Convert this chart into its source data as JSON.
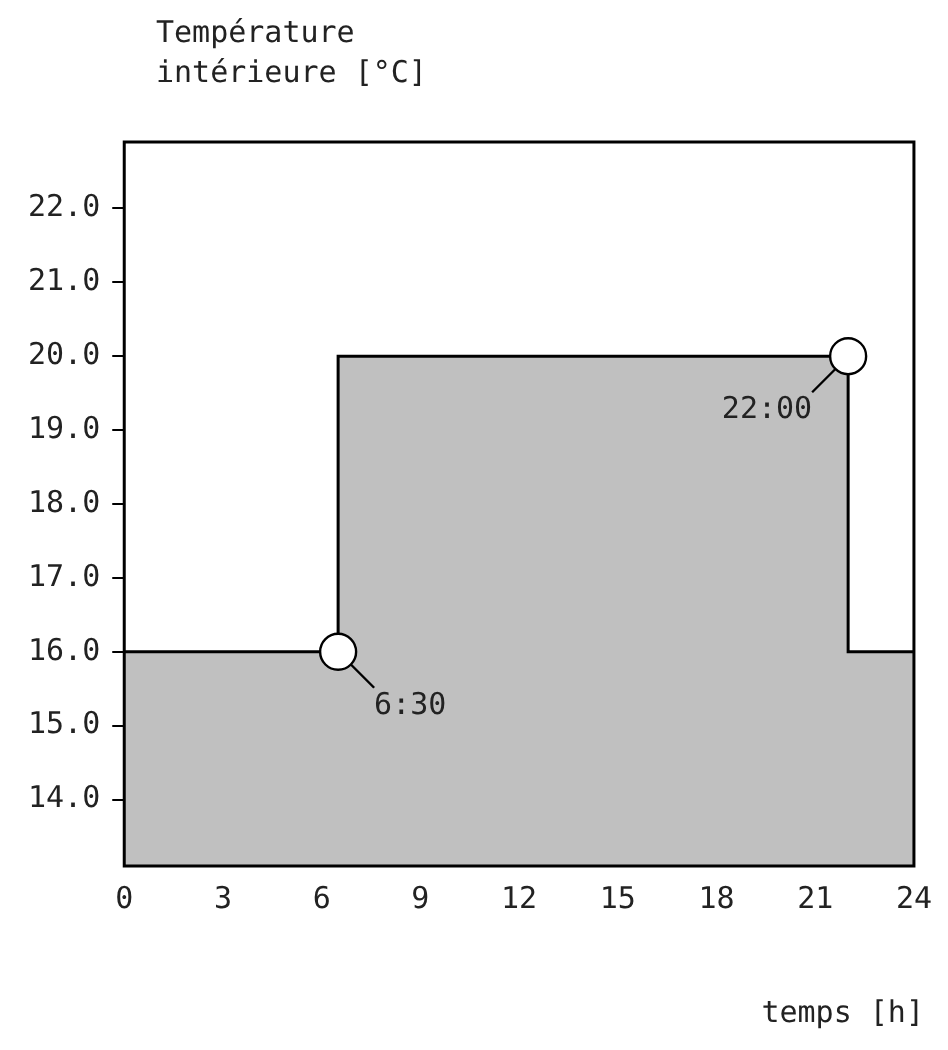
{
  "chart_data": {
    "type": "area",
    "xlabel": "temps [h]",
    "ylabel": "Température\nintérieure [°C]",
    "x": [
      0,
      6.5,
      6.5,
      22,
      22,
      24
    ],
    "series": [
      {
        "color": "#c0c0c0",
        "values": [
          16,
          16,
          20,
          20,
          16,
          16
        ]
      }
    ],
    "xlim": [
      0,
      24
    ],
    "xticks": [
      {
        "value": 0,
        "label": "0"
      },
      3,
      6,
      9,
      12,
      15,
      18,
      21,
      24
    ],
    "ylim": [
      13.1,
      22.9
    ],
    "yticks": [
      {
        "value": 14,
        "label": "14.0"
      },
      {
        "value": 15,
        "label": "15.0"
      },
      {
        "value": 16,
        "label": "16.0"
      },
      {
        "value": 17,
        "label": "17.0"
      },
      {
        "value": 18,
        "label": "18.0"
      },
      {
        "value": 19,
        "label": "19.0"
      },
      {
        "value": 20,
        "label": "20.0"
      },
      {
        "value": 21,
        "label": "21.0"
      },
      {
        "value": 22,
        "label": "22.0"
      }
    ],
    "grid": false,
    "legend": false,
    "annotations": [
      {
        "text": "6:30",
        "x": 6.5,
        "y": 16
      },
      {
        "text": "22:00",
        "x": 22,
        "y": 20
      }
    ]
  }
}
